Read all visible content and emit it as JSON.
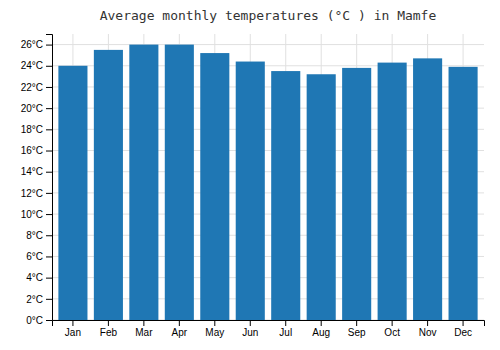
{
  "chart_data": {
    "type": "bar",
    "title": "Average monthly temperatures (°C ) in Mamfe",
    "categories": [
      "Jan",
      "Feb",
      "Mar",
      "Apr",
      "May",
      "Jun",
      "Jul",
      "Aug",
      "Sep",
      "Oct",
      "Nov",
      "Dec"
    ],
    "values": [
      24.0,
      25.5,
      26.0,
      26.0,
      25.2,
      24.4,
      23.5,
      23.2,
      23.8,
      24.3,
      24.7,
      23.9
    ],
    "ylim": [
      0,
      27
    ],
    "yticks": [
      {
        "value": 0,
        "label": "0°C"
      },
      {
        "value": 2,
        "label": "2°C"
      },
      {
        "value": 4,
        "label": "4°C"
      },
      {
        "value": 6,
        "label": "6°C"
      },
      {
        "value": 8,
        "label": "8°C"
      },
      {
        "value": 10,
        "label": "10°C"
      },
      {
        "value": 12,
        "label": "12°C"
      },
      {
        "value": 14,
        "label": "14°C"
      },
      {
        "value": 16,
        "label": "16°C"
      },
      {
        "value": 18,
        "label": "18°C"
      },
      {
        "value": 20,
        "label": "20°C"
      },
      {
        "value": 22,
        "label": "22°C"
      },
      {
        "value": 24,
        "label": "24°C"
      },
      {
        "value": 26,
        "label": "26°C"
      }
    ],
    "grid": true
  }
}
